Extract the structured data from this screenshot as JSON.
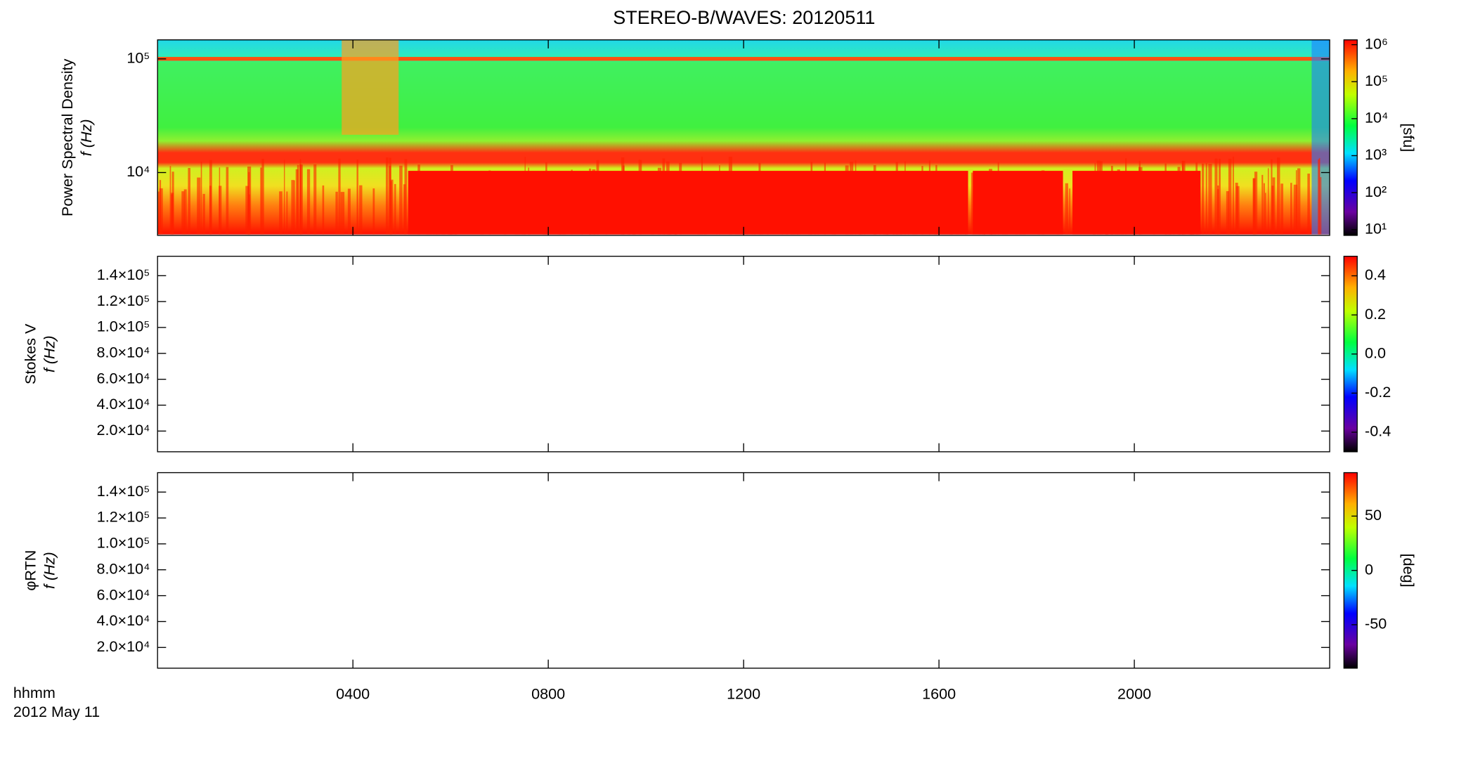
{
  "chart_data": [
    {
      "type": "heatmap",
      "title": "STEREO-B/WAVES: 20120511",
      "ylabel": "Power Spectral Density",
      "ylabel2": "f (Hz)",
      "yscale": "log",
      "ylim": [
        2800,
        147000
      ],
      "yticks": [
        {
          "value": 10000,
          "label": "10⁴"
        },
        {
          "value": 100000,
          "label": "10⁵"
        }
      ],
      "xlim": [
        0,
        24
      ],
      "xticks": [
        4,
        8,
        12,
        16,
        20
      ],
      "cscale": "log",
      "clim": [
        7,
        1350000
      ],
      "cticks": [
        {
          "value": 10,
          "label": "10¹"
        },
        {
          "value": 100,
          "label": "10²"
        },
        {
          "value": 1000,
          "label": "10³"
        },
        {
          "value": 10000,
          "label": "10⁴"
        },
        {
          "value": 100000,
          "label": "10⁵"
        },
        {
          "value": 1000000,
          "label": "10⁶"
        }
      ],
      "clabel": "[sfu]"
    },
    {
      "type": "heatmap",
      "ylabel": "Stokes V",
      "ylabel2": "f (Hz)",
      "yscale": "linear",
      "ylim": [
        4000,
        155000
      ],
      "yticks": [
        {
          "value": 20000,
          "label": "2.0×10⁴"
        },
        {
          "value": 40000,
          "label": "4.0×10⁴"
        },
        {
          "value": 60000,
          "label": "6.0×10⁴"
        },
        {
          "value": 80000,
          "label": "8.0×10⁴"
        },
        {
          "value": 100000,
          "label": "1.0×10⁵"
        },
        {
          "value": 120000,
          "label": "1.2×10⁵"
        },
        {
          "value": 140000,
          "label": "1.4×10⁵"
        }
      ],
      "xlim": [
        0,
        24
      ],
      "xticks": [
        4,
        8,
        12,
        16,
        20
      ],
      "cscale": "linear",
      "clim": [
        -0.5,
        0.5
      ],
      "cticks": [
        {
          "value": -0.4,
          "label": "-0.4"
        },
        {
          "value": -0.2,
          "label": "-0.2"
        },
        {
          "value": 0,
          "label": "0.0"
        },
        {
          "value": 0.2,
          "label": "0.2"
        },
        {
          "value": 0.4,
          "label": "0.4"
        }
      ]
    },
    {
      "type": "heatmap",
      "ylabel": "φRTN",
      "ylabel2": "f (Hz)",
      "yscale": "linear",
      "ylim": [
        4000,
        155000
      ],
      "yticks": [
        {
          "value": 20000,
          "label": "2.0×10⁴"
        },
        {
          "value": 40000,
          "label": "4.0×10⁴"
        },
        {
          "value": 60000,
          "label": "6.0×10⁴"
        },
        {
          "value": 80000,
          "label": "8.0×10⁴"
        },
        {
          "value": 100000,
          "label": "1.0×10⁵"
        },
        {
          "value": 120000,
          "label": "1.2×10⁵"
        },
        {
          "value": 140000,
          "label": "1.4×10⁵"
        }
      ],
      "xlim": [
        0,
        24
      ],
      "xticks": [
        {
          "value": 4,
          "label": "0400"
        },
        {
          "value": 8,
          "label": "0800"
        },
        {
          "value": 12,
          "label": "1200"
        },
        {
          "value": 16,
          "label": "1600"
        },
        {
          "value": 20,
          "label": "2000"
        }
      ],
      "xlabel": "hhmm",
      "date": "2012 May 11",
      "cscale": "linear",
      "clim": [
        -90,
        90
      ],
      "cticks": [
        -50,
        0,
        50
      ],
      "clabel": "[deg]"
    }
  ]
}
